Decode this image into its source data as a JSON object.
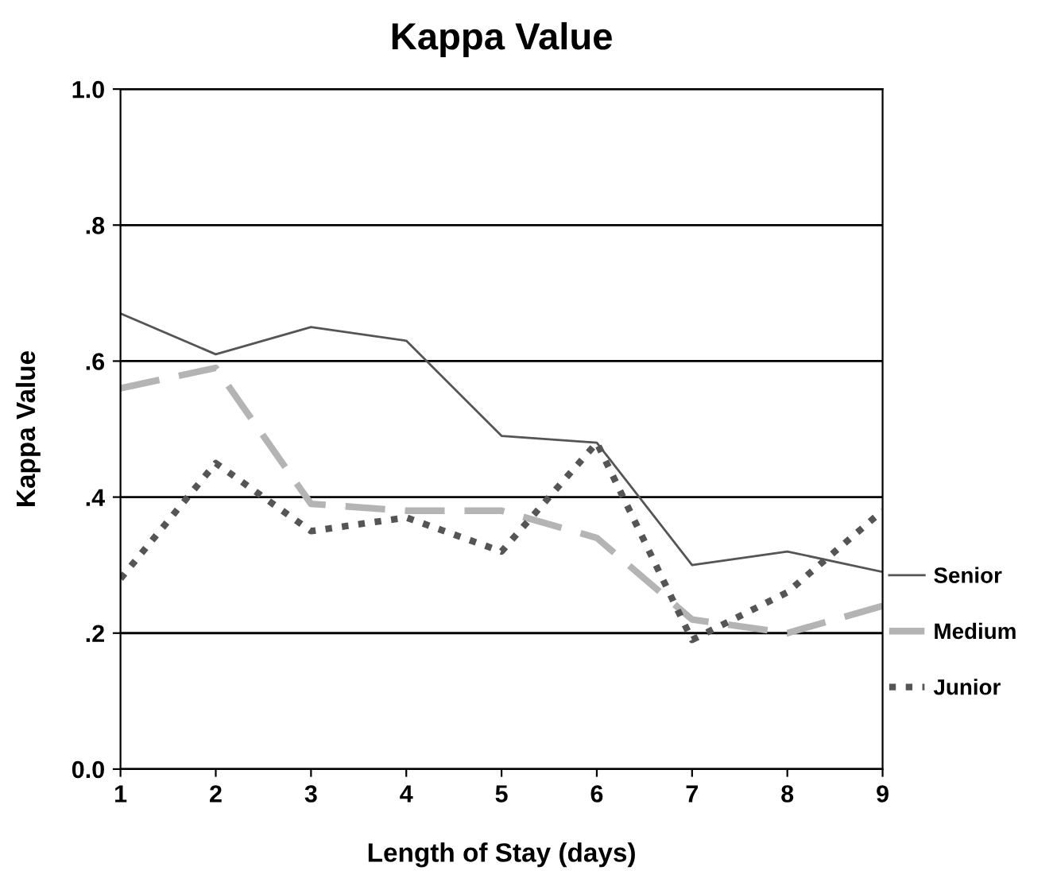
{
  "chart_data": {
    "type": "line",
    "title": "Kappa Value",
    "xlabel": "Length of Stay (days)",
    "ylabel": "Kappa Value",
    "x": [
      1,
      2,
      3,
      4,
      5,
      6,
      7,
      8,
      9
    ],
    "series": [
      {
        "name": "Senior",
        "color": "#555555",
        "line_style": "solid",
        "values": [
          0.67,
          0.61,
          0.65,
          0.63,
          0.49,
          0.48,
          0.3,
          0.32,
          0.29
        ]
      },
      {
        "name": "Medium",
        "color": "#b4b4b4",
        "line_style": "dashed",
        "values": [
          0.56,
          0.59,
          0.39,
          0.38,
          0.38,
          0.34,
          0.22,
          0.2,
          0.24
        ]
      },
      {
        "name": "Junior",
        "color": "#555555",
        "line_style": "dotted",
        "values": [
          0.28,
          0.45,
          0.35,
          0.37,
          0.32,
          0.48,
          0.19,
          0.26,
          0.38
        ]
      }
    ],
    "xlim": [
      1,
      9
    ],
    "xticks": [
      1,
      2,
      3,
      4,
      5,
      6,
      7,
      8,
      9
    ],
    "ylim": [
      0,
      1
    ],
    "yticks": [
      {
        "value": 0,
        "label": "0.0"
      },
      {
        "value": 0.2,
        "label": ".2"
      },
      {
        "value": 0.4,
        "label": ".4"
      },
      {
        "value": 0.6,
        "label": ".6"
      },
      {
        "value": 0.8,
        "label": ".8"
      },
      {
        "value": 1,
        "label": "1.0"
      }
    ],
    "grid": "y",
    "legend": "right",
    "marker": "none"
  }
}
